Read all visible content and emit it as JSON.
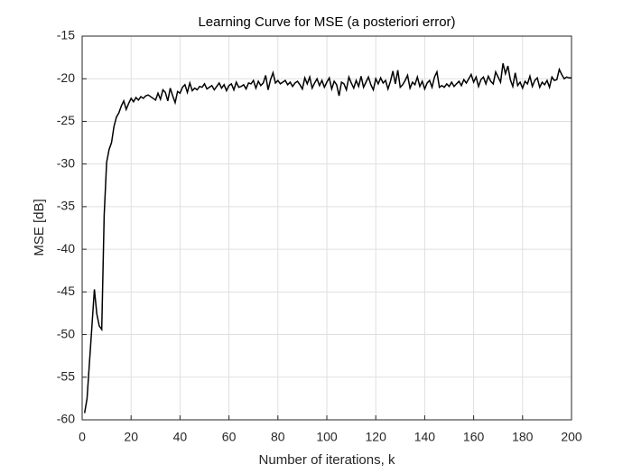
{
  "chart_data": {
    "type": "line",
    "title": "Learning Curve for MSE (a posteriori error)",
    "x_label": "Number of iterations, k",
    "y_label": "MSE [dB]",
    "xlim": [
      0,
      200
    ],
    "ylim": [
      -60,
      -15
    ],
    "xticks": [
      0,
      20,
      40,
      60,
      80,
      100,
      120,
      140,
      160,
      180,
      200
    ],
    "yticks": [
      -60,
      -55,
      -50,
      -45,
      -40,
      -35,
      -30,
      -25,
      -20,
      -15
    ],
    "grid": true,
    "x": [
      1,
      2,
      3,
      4,
      5,
      6,
      7,
      8,
      9,
      10,
      11,
      12,
      13,
      14,
      15,
      16,
      17,
      18,
      19,
      20,
      21,
      22,
      23,
      24,
      25,
      26,
      27,
      28,
      29,
      30,
      31,
      32,
      33,
      34,
      35,
      36,
      37,
      38,
      39,
      40,
      41,
      42,
      43,
      44,
      45,
      46,
      47,
      48,
      49,
      50,
      51,
      52,
      53,
      54,
      55,
      56,
      57,
      58,
      59,
      60,
      61,
      62,
      63,
      64,
      65,
      66,
      67,
      68,
      69,
      70,
      71,
      72,
      73,
      74,
      75,
      76,
      77,
      78,
      79,
      80,
      81,
      82,
      83,
      84,
      85,
      86,
      87,
      88,
      89,
      90,
      91,
      92,
      93,
      94,
      95,
      96,
      97,
      98,
      99,
      100,
      101,
      102,
      103,
      104,
      105,
      106,
      107,
      108,
      109,
      110,
      111,
      112,
      113,
      114,
      115,
      116,
      117,
      118,
      119,
      120,
      121,
      122,
      123,
      124,
      125,
      126,
      127,
      128,
      129,
      130,
      131,
      132,
      133,
      134,
      135,
      136,
      137,
      138,
      139,
      140,
      141,
      142,
      143,
      144,
      145,
      146,
      147,
      148,
      149,
      150,
      151,
      152,
      153,
      154,
      155,
      156,
      157,
      158,
      159,
      160,
      161,
      162,
      163,
      164,
      165,
      166,
      167,
      168,
      169,
      170,
      171,
      172,
      173,
      174,
      175,
      176,
      177,
      178,
      179,
      180,
      181,
      182,
      183,
      184,
      185,
      186,
      187,
      188,
      189,
      190,
      191,
      192,
      193,
      194,
      195,
      196,
      197,
      198,
      199,
      200
    ],
    "series": [
      {
        "color": "#000000",
        "values": [
          -59.2,
          -57.5,
          -53.2,
          -49,
          -44.7,
          -47.6,
          -49,
          -49.4,
          -36,
          -29.8,
          -28.3,
          -27.5,
          -25.6,
          -24.5,
          -24,
          -23.2,
          -22.6,
          -23.6,
          -22.9,
          -22.3,
          -22.7,
          -22.2,
          -22.5,
          -22.1,
          -22.3,
          -22,
          -21.9,
          -22.1,
          -22.3,
          -22.5,
          -21.7,
          -22.4,
          -21.3,
          -21.6,
          -22.6,
          -21.1,
          -22,
          -22.8,
          -21.5,
          -21.7,
          -21,
          -20.7,
          -21.6,
          -20.5,
          -21.4,
          -21.1,
          -21.3,
          -20.9,
          -21,
          -20.6,
          -21.2,
          -21,
          -20.8,
          -21.3,
          -20.9,
          -20.5,
          -21.1,
          -20.7,
          -21.4,
          -20.8,
          -20.6,
          -21.3,
          -20.4,
          -21,
          -20.9,
          -20.7,
          -21.2,
          -20.5,
          -20.6,
          -20.2,
          -21.1,
          -20.3,
          -20.8,
          -20.5,
          -19.6,
          -21.3,
          -20.1,
          -19.3,
          -20.5,
          -20.2,
          -20.6,
          -20.4,
          -20.2,
          -20.7,
          -20.4,
          -20.9,
          -20.5,
          -20.3,
          -20.7,
          -21.2,
          -19.9,
          -20.6,
          -19.8,
          -21.1,
          -20.5,
          -20,
          -20.8,
          -20.2,
          -21,
          -20.4,
          -19.9,
          -21.2,
          -20.3,
          -20.7,
          -22,
          -20.4,
          -20.6,
          -21.3,
          -19.8,
          -20.5,
          -21.1,
          -20.2,
          -20.9,
          -19.7,
          -21,
          -20.4,
          -19.8,
          -20.7,
          -21.3,
          -20,
          -20.6,
          -19.9,
          -20.5,
          -20.2,
          -21.2,
          -20.3,
          -19.1,
          -20.6,
          -19,
          -21,
          -20.7,
          -20.2,
          -19.6,
          -21.1,
          -20.4,
          -20.7,
          -19.8,
          -20.9,
          -20.3,
          -21.2,
          -20.5,
          -20.2,
          -21,
          -19.8,
          -19.2,
          -21,
          -20.8,
          -21,
          -20.6,
          -20.9,
          -20.4,
          -20.9,
          -20.6,
          -20.3,
          -20.8,
          -20.1,
          -20.5,
          -20,
          -19.5,
          -20.4,
          -19.8,
          -20.9,
          -20.1,
          -19.8,
          -20.6,
          -19.7,
          -20.3,
          -20.6,
          -19.2,
          -19.8,
          -20.4,
          -18.2,
          -19.4,
          -18.5,
          -20.1,
          -20.9,
          -19.3,
          -20.8,
          -20.4,
          -21.1,
          -20.3,
          -20.6,
          -19.7,
          -20.9,
          -20.2,
          -19.9,
          -21,
          -20.4,
          -20.7,
          -20.2,
          -21,
          -19.8,
          -20.2,
          -20.1,
          -18.9,
          -19.5,
          -20,
          -19.8,
          -19.9,
          -19.9
        ]
      }
    ]
  }
}
